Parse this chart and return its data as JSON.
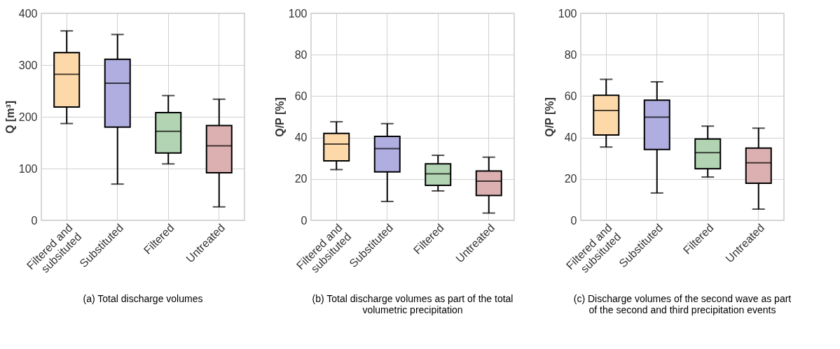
{
  "chart_data": [
    {
      "type": "box",
      "ylabel": "Q [m³]",
      "categories": [
        "Filtered and subsituted",
        "Substituted",
        "Filtered",
        "Untreated"
      ],
      "colors": [
        "#fdd9aa",
        "#b0aee0",
        "#b3d4b3",
        "#dcb0b0"
      ],
      "boxes": [
        {
          "low": 187,
          "q1": 219,
          "median": 282,
          "q3": 324,
          "high": 366
        },
        {
          "low": 70,
          "q1": 180,
          "median": 265,
          "q3": 311,
          "high": 359
        },
        {
          "low": 109,
          "q1": 130,
          "median": 172,
          "q3": 208,
          "high": 241
        },
        {
          "low": 26,
          "q1": 92,
          "median": 144,
          "q3": 183,
          "high": 234
        }
      ],
      "ylim": [
        0,
        400
      ],
      "yticks": [
        0,
        100,
        200,
        300,
        400
      ],
      "grid": true,
      "annotations": [
        "(a) Total discharge volumes"
      ]
    },
    {
      "type": "box",
      "ylabel": "Q/P [%]",
      "categories": [
        "Filtered and subsituted",
        "Substituted",
        "Filtered",
        "Untreated"
      ],
      "colors": [
        "#fdd9aa",
        "#b0aee0",
        "#b3d4b3",
        "#dcb0b0"
      ],
      "boxes": [
        {
          "low": 24.5,
          "q1": 28.7,
          "median": 36.8,
          "q3": 42,
          "high": 47.6
        },
        {
          "low": 9.1,
          "q1": 23.4,
          "median": 34.6,
          "q3": 40.5,
          "high": 46.7
        },
        {
          "low": 14.2,
          "q1": 16.9,
          "median": 22.5,
          "q3": 27.3,
          "high": 31.4
        },
        {
          "low": 3.5,
          "q1": 12,
          "median": 18.9,
          "q3": 23.8,
          "high": 30.5
        }
      ],
      "ylim": [
        0,
        100
      ],
      "yticks": [
        0,
        20,
        40,
        60,
        80,
        100
      ],
      "grid": true,
      "annotations": [
        "(b) Total discharge volumes as part of the total volumetric precipitation"
      ]
    },
    {
      "type": "box",
      "ylabel": "Q/P [%]",
      "categories": [
        "Filtered and subsituted",
        "Substituted",
        "Filtered",
        "Untreated"
      ],
      "colors": [
        "#fdd9aa",
        "#b0aee0",
        "#b3d4b3",
        "#dcb0b0"
      ],
      "boxes": [
        {
          "low": 35.4,
          "q1": 41.2,
          "median": 53,
          "q3": 60.4,
          "high": 68.1
        },
        {
          "low": 13.2,
          "q1": 34.2,
          "median": 49.8,
          "q3": 58,
          "high": 66.9
        },
        {
          "low": 20.9,
          "q1": 24.9,
          "median": 32.7,
          "q3": 39.3,
          "high": 45.5
        },
        {
          "low": 5.4,
          "q1": 17.9,
          "median": 27.8,
          "q3": 34.9,
          "high": 44.5
        }
      ],
      "ylim": [
        0,
        100
      ],
      "yticks": [
        0,
        20,
        40,
        60,
        80,
        100
      ],
      "grid": true,
      "annotations": [
        "(c) Discharge volumes of the second wave as part of the second and third precipitation events"
      ]
    }
  ]
}
